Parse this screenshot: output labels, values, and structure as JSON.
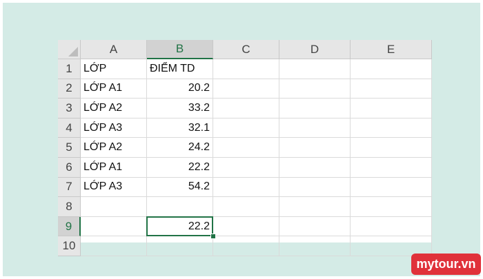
{
  "columns": [
    "A",
    "B",
    "C",
    "D",
    "E"
  ],
  "rows": [
    {
      "number": 1,
      "cells": {
        "A": "LỚP",
        "B": "ĐIỂM TD"
      }
    },
    {
      "number": 2,
      "cells": {
        "A": "LỚP A1",
        "B": 20.2
      }
    },
    {
      "number": 3,
      "cells": {
        "A": "LỚP A2",
        "B": 33.2
      }
    },
    {
      "number": 4,
      "cells": {
        "A": "LỚP A3",
        "B": 32.1
      }
    },
    {
      "number": 5,
      "cells": {
        "A": "LỚP A2",
        "B": 24.2
      }
    },
    {
      "number": 6,
      "cells": {
        "A": "LỚP A1",
        "B": 22.2
      }
    },
    {
      "number": 7,
      "cells": {
        "A": "LỚP A3",
        "B": 54.2
      }
    },
    {
      "number": 8,
      "cells": {}
    },
    {
      "number": 9,
      "cells": {
        "B": 22.2
      }
    },
    {
      "number": 10,
      "cells": {}
    }
  ],
  "watermark": "mytour.vn"
}
